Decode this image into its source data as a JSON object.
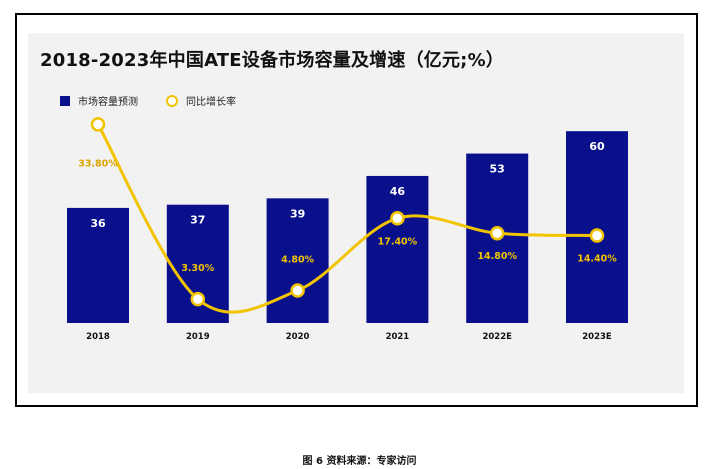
{
  "chart_data": {
    "type": "bar",
    "title": "2018-2023年中国ATE设备市场容量及增速（亿元;%）",
    "categories": [
      "2018",
      "2019",
      "2020",
      "2021",
      "2022E",
      "2023E"
    ],
    "series": [
      {
        "name": "市场容量预测",
        "kind": "bar",
        "values": [
          36,
          37,
          39,
          46,
          53,
          60
        ],
        "labels": [
          "36",
          "37",
          "39",
          "46",
          "53",
          "60"
        ]
      },
      {
        "name": "同比增长率",
        "kind": "line",
        "values": [
          33.8,
          3.3,
          4.8,
          17.4,
          14.8,
          14.4
        ],
        "labels": [
          "33.80%",
          "3.30%",
          "4.80%",
          "17.40%",
          "14.80%",
          "14.40%"
        ]
      }
    ],
    "xlabel": "",
    "ylabel": "",
    "ylim": [
      0,
      66
    ],
    "ylim_secondary": [
      0,
      37
    ],
    "legend_position": "top-left",
    "grid": false
  },
  "colors": {
    "bar": "#0a0f8c",
    "line": "#f2c400",
    "label_gold": "#d9a600",
    "panel": "#f2f2f2"
  },
  "caption": "图 6  资料来源：专家访问"
}
